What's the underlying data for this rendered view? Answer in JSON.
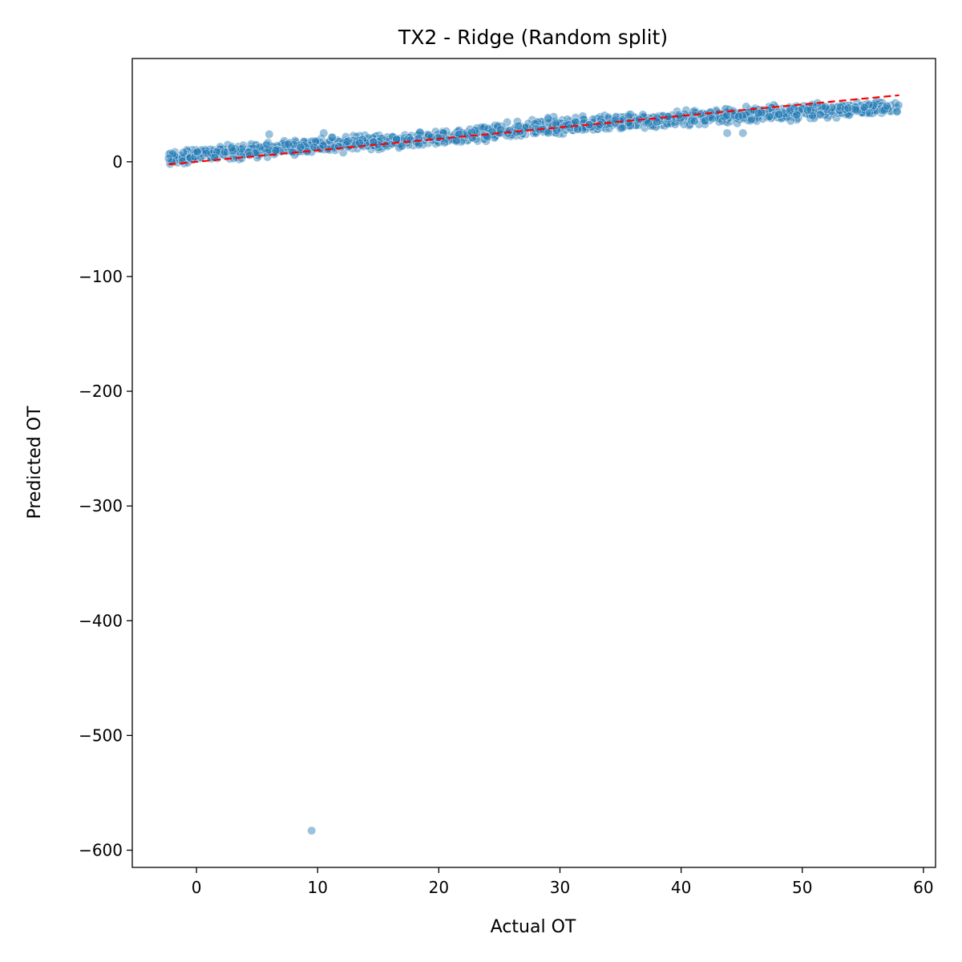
{
  "chart_data": {
    "type": "scatter",
    "title": "TX2 - Ridge (Random split)",
    "xlabel": "Actual OT",
    "ylabel": "Predicted OT",
    "xlim": [
      -5.3,
      61
    ],
    "ylim": [
      -615,
      90
    ],
    "xticks": [
      0,
      10,
      20,
      30,
      40,
      50,
      60
    ],
    "yticks": [
      0,
      -100,
      -200,
      -300,
      -400,
      -500,
      -600
    ],
    "grid": false,
    "legend": "none",
    "point_color": "#1f77b4",
    "point_alpha": 0.45,
    "reference_line": {
      "style": "dashed",
      "color": "#ff0000",
      "x": [
        -2.3,
        58
      ],
      "y": [
        -2.3,
        58
      ]
    },
    "main_cloud": {
      "x_range": [
        -2.3,
        58
      ],
      "trend_y": [
        [
          -2.3,
          3
        ],
        [
          0,
          6
        ],
        [
          5,
          10
        ],
        [
          10,
          14
        ],
        [
          15,
          17
        ],
        [
          20,
          20
        ],
        [
          25,
          26
        ],
        [
          30,
          32
        ],
        [
          35,
          34
        ],
        [
          40,
          38
        ],
        [
          45,
          41
        ],
        [
          50,
          44
        ],
        [
          55,
          46
        ],
        [
          58,
          47
        ]
      ],
      "spread": 6
    },
    "outliers": [
      {
        "x": 9.5,
        "y": -583
      },
      {
        "x": -2.3,
        "y": 3
      },
      {
        "x": 43.8,
        "y": 25
      },
      {
        "x": 45.1,
        "y": 25
      },
      {
        "x": 6,
        "y": 24
      },
      {
        "x": 10.5,
        "y": 25
      }
    ]
  }
}
